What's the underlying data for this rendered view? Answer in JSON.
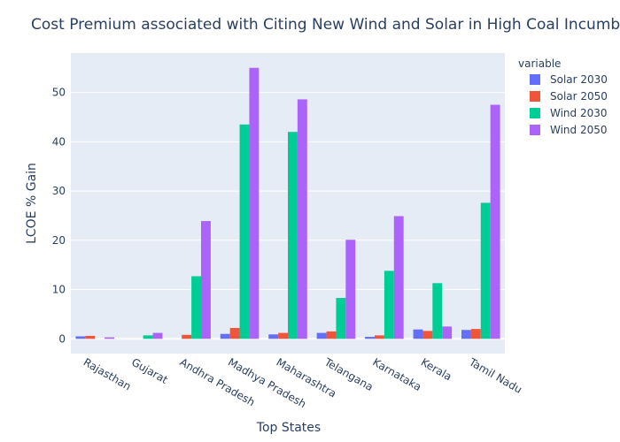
{
  "chart_data": {
    "type": "bar",
    "title": "Cost Premium associated with Citing New Wind and Solar in High Coal Incumbency D",
    "xlabel": "Top States",
    "ylabel": "LCOE % Gain",
    "ylim": [
      -3,
      58
    ],
    "yticks": [
      0,
      10,
      20,
      30,
      40,
      50
    ],
    "grid": true,
    "legend_title": "variable",
    "legend_position": "right",
    "categories": [
      "Rajasthan",
      "Gujarat",
      "Andhra Pradesh",
      "Madhya Pradesh",
      "Maharashtra",
      "Telangana",
      "Karnataka",
      "Kerala",
      "Tamil Nadu"
    ],
    "series": [
      {
        "name": "Solar 2030",
        "color": "#636efa",
        "values": [
          0.5,
          0.0,
          0.0,
          1.0,
          0.9,
          1.2,
          0.4,
          1.9,
          1.8
        ]
      },
      {
        "name": "Solar 2050",
        "color": "#ef553b",
        "values": [
          0.6,
          0.0,
          0.8,
          2.2,
          1.2,
          1.5,
          0.7,
          1.6,
          2.0
        ]
      },
      {
        "name": "Wind 2030",
        "color": "#00cc96",
        "values": [
          0.0,
          0.7,
          12.7,
          43.5,
          42.0,
          8.3,
          13.8,
          11.3,
          27.6
        ]
      },
      {
        "name": "Wind 2050",
        "color": "#ab63fa",
        "values": [
          0.3,
          1.2,
          23.9,
          55.0,
          48.6,
          20.1,
          24.9,
          2.5,
          47.5
        ]
      }
    ]
  }
}
